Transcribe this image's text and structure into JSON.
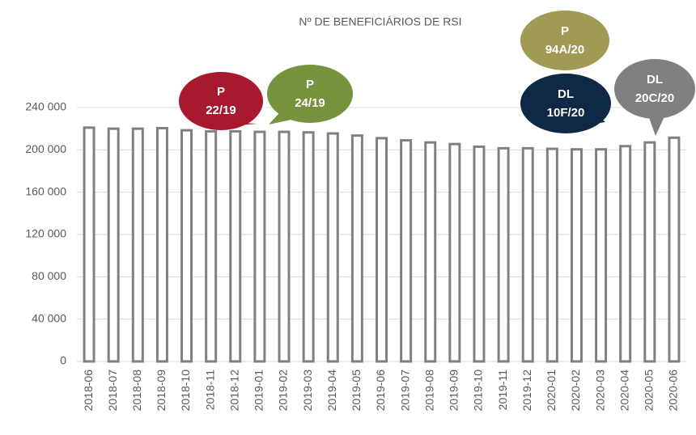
{
  "chart_data": {
    "type": "bar",
    "title": "Nº DE BENEFICIÁRIOS DE RSI",
    "categories": [
      "2018-06",
      "2018-07",
      "2018-08",
      "2018-09",
      "2018-10",
      "2018-11",
      "2018-12",
      "2019-01",
      "2019-02",
      "2019-03",
      "2019-04",
      "2019-05",
      "2019-06",
      "2019-07",
      "2019-08",
      "2019-09",
      "2019-10",
      "2019-11",
      "2019-12",
      "2020-01",
      "2020-02",
      "2020-03",
      "2020-04",
      "2020-05",
      "2020-06"
    ],
    "values": [
      221000,
      220000,
      220000,
      220500,
      218500,
      217500,
      217500,
      217000,
      217000,
      216500,
      215500,
      213500,
      211000,
      209000,
      207000,
      205500,
      203000,
      201500,
      201500,
      201000,
      200500,
      200500,
      203500,
      207000,
      211500
    ],
    "color": "#808080",
    "ylim": [
      0,
      240000
    ],
    "yticks": [
      0,
      {
        "value": 40000,
        "label": "40 000"
      },
      {
        "value": 80000,
        "label": "80 000"
      },
      {
        "value": 120000,
        "label": "120 000"
      },
      {
        "value": 160000,
        "label": "160 000"
      },
      {
        "value": 200000,
        "label": "200 000"
      },
      {
        "value": 240000,
        "label": "240 000"
      }
    ],
    "grid": true,
    "annotations": [
      {
        "text": [
          "P",
          "22/19"
        ],
        "color": "#a6192e"
      },
      {
        "text": [
          "P",
          "24/19"
        ],
        "color": "#76923c"
      },
      {
        "text": [
          "P",
          "94A/20"
        ],
        "color": "#a09a54"
      },
      {
        "text": [
          "DL",
          "10F/20"
        ],
        "color": "#0f2846"
      },
      {
        "text": [
          "DL",
          "20C/20"
        ],
        "color": "#808080"
      }
    ]
  }
}
